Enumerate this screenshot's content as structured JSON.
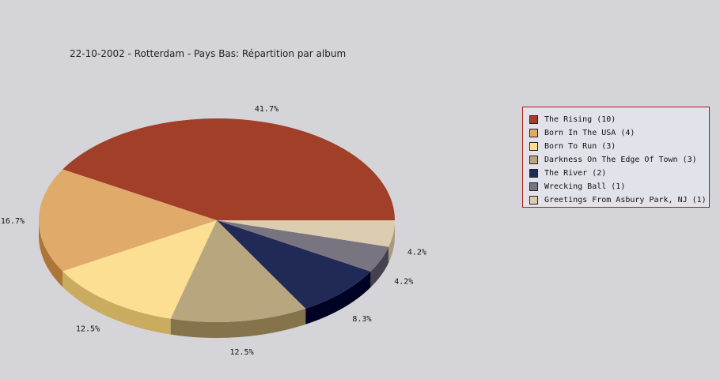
{
  "chart_data": {
    "type": "pie",
    "title": "22-10-2002 - Rotterdam - Pays Bas:  Répartition par album",
    "legend_position": "right",
    "slices": [
      {
        "label": "The Rising (10)",
        "value": 41.7,
        "pct_label": "41.7%",
        "color": "#a13f28",
        "side_color": "#6e0b02"
      },
      {
        "label": "Born In The USA (4)",
        "value": 16.7,
        "pct_label": "16.7%",
        "color": "#e0aa6b",
        "side_color": "#ad7537"
      },
      {
        "label": "Born To Run (3)",
        "value": 12.5,
        "pct_label": "12.5%",
        "color": "#fddf93",
        "side_color": "#c9ac60"
      },
      {
        "label": "Darkness On The Edge Of Town (3)",
        "value": 12.5,
        "pct_label": "12.5%",
        "color": "#b8a67e",
        "side_color": "#85734b"
      },
      {
        "label": "The River (2)",
        "value": 8.3,
        "pct_label": "8.3%",
        "color": "#212a56",
        "side_color": "#000223"
      },
      {
        "label": "Wrecking Ball (1)",
        "value": 4.2,
        "pct_label": "4.2%",
        "color": "#797580",
        "side_color": "#46424d"
      },
      {
        "label": "Greetings From Asbury Park, NJ (1)",
        "value": 4.2,
        "pct_label": "4.2%",
        "color": "#dccdb0",
        "side_color": "#a99a7d"
      }
    ]
  }
}
